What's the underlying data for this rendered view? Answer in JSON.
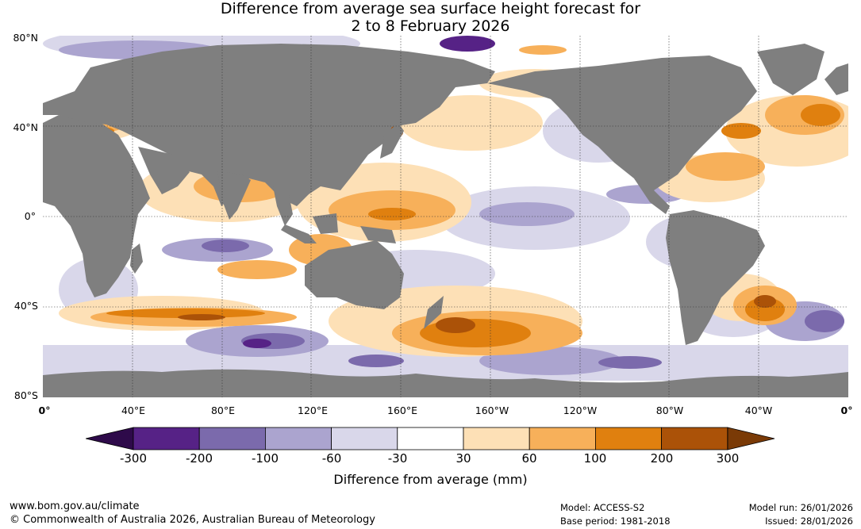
{
  "title": {
    "line1": "Difference from average sea surface height forecast for",
    "line2": "2 to 8 February 2026"
  },
  "latitude_labels": [
    "80°N",
    "40°N",
    "0°",
    "40°S",
    "80°S"
  ],
  "longitude_labels": [
    "0°",
    "40°E",
    "80°E",
    "120°E",
    "160°E",
    "160°W",
    "120°W",
    "80°W",
    "40°W",
    "0°"
  ],
  "colorbar": {
    "title": "Difference from average (mm)",
    "tick_labels": [
      "-300",
      "-200",
      "-100",
      "-60",
      "-30",
      "30",
      "60",
      "100",
      "200",
      "300"
    ],
    "colors": {
      "below_min": "#2e0a4a",
      "bins": [
        "#562286",
        "#7b6aac",
        "#aba4cf",
        "#d9d7ea",
        "#ffffff",
        "#fde0b6",
        "#f7b05a",
        "#e0800f",
        "#ab5208"
      ],
      "above_max": "#7a3a06"
    }
  },
  "map_colors": {
    "land": "#7f7f7f",
    "ocean_neutral": "#ffffff"
  },
  "footer": {
    "url": "www.bom.gov.au/climate",
    "copyright": "© Commonwealth of Australia 2026, Australian Bureau of Meteorology",
    "model": "Model: ACCESS-S2",
    "base_period": "Base period: 1981-2018",
    "model_run": "Model run: 26/01/2026",
    "issued": "Issued: 28/01/2026"
  }
}
